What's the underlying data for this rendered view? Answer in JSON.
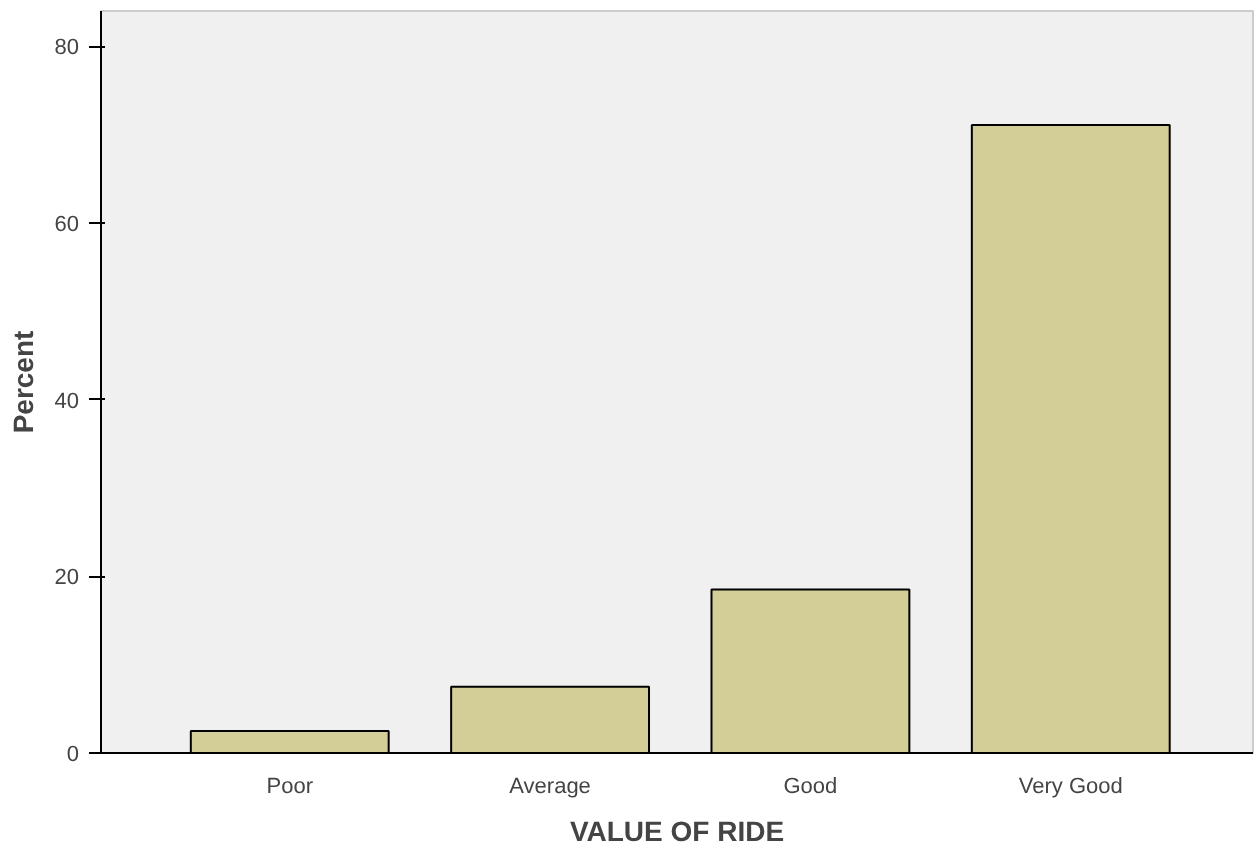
{
  "chart_data": {
    "type": "bar",
    "xlabel": "VALUE OF RIDE",
    "ylabel": "Percent",
    "categories": [
      "Poor",
      "Average",
      "Good",
      "Very Good"
    ],
    "values": [
      2.5,
      7.5,
      18.5,
      71.1
    ],
    "color": "#d3ce97",
    "ylim": [
      0,
      84
    ],
    "yticks": [
      0,
      20,
      40,
      60,
      80
    ],
    "grid": false
  }
}
